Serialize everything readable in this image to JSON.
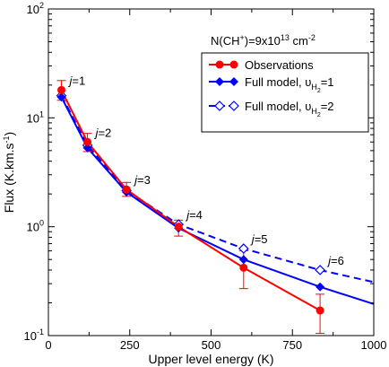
{
  "chart_data": {
    "type": "line",
    "xlabel": "Upper level energy (K)",
    "ylabel_main": "Flux (K.km.s",
    "ylabel_sup": "-1",
    "ylabel_end": ")",
    "xlim": [
      0,
      1000
    ],
    "ylim": [
      0.1,
      100
    ],
    "yscale": "log",
    "xticks": [
      0,
      250,
      500,
      750,
      1000
    ],
    "yticks": [
      {
        "value": 0.1,
        "base": "10",
        "exp": "-1"
      },
      {
        "value": 1,
        "base": "10",
        "exp": "0"
      },
      {
        "value": 10,
        "base": "10",
        "exp": "1"
      },
      {
        "value": 100,
        "base": "10",
        "exp": "2"
      }
    ],
    "annotation": {
      "pre": "N(CH",
      "sup1": "+",
      "mid": ")=9x10",
      "sup2": "13",
      "post": " cm",
      "sup3": "-2"
    },
    "legend_position": "top-right",
    "series": [
      {
        "name": "Observations",
        "color": "#ff0000",
        "marker": "circle",
        "dash": false,
        "x": [
          40,
          120,
          240,
          400,
          600,
          835
        ],
        "y": [
          18,
          6.0,
          2.2,
          1.0,
          0.42,
          0.17
        ],
        "err_hi": [
          22,
          7.2,
          2.55,
          1.15,
          0.6,
          0.24
        ],
        "err_lo": [
          14.5,
          4.9,
          1.9,
          0.82,
          0.27,
          0.105
        ]
      },
      {
        "name_pre": "Full model, υ",
        "name_sub": "H",
        "name_subsub": "2",
        "name_post": "=1",
        "color": "#0000ff",
        "marker": "diamond-filled",
        "dash": false,
        "x": [
          40,
          120,
          240,
          400,
          600,
          835
        ],
        "y": [
          15.5,
          5.3,
          2.08,
          0.97,
          0.5,
          0.28
        ],
        "extend_to": {
          "x": 1000,
          "y": 0.195
        }
      },
      {
        "name_pre": "Full model, υ",
        "name_sub": "H",
        "name_subsub": "2",
        "name_post": "=2",
        "color": "#0000ff",
        "marker": "diamond-open",
        "dash": true,
        "x": [
          40,
          120,
          240,
          400,
          600,
          835
        ],
        "y": [
          16.0,
          5.6,
          2.15,
          1.05,
          0.63,
          0.4
        ],
        "extend_to": {
          "x": 1000,
          "y": 0.31
        }
      }
    ],
    "j_labels": [
      {
        "text": "j",
        "num": "=1",
        "x": 40,
        "y": 18
      },
      {
        "text": "j",
        "num": "=2",
        "x": 120,
        "y": 6.0
      },
      {
        "text": "j",
        "num": "=3",
        "x": 240,
        "y": 2.2
      },
      {
        "text": "j",
        "num": "=4",
        "x": 400,
        "y": 1.05
      },
      {
        "text": "j",
        "num": "=5",
        "x": 600,
        "y": 0.63
      },
      {
        "text": "j",
        "num": "=6",
        "x": 835,
        "y": 0.4
      }
    ]
  }
}
